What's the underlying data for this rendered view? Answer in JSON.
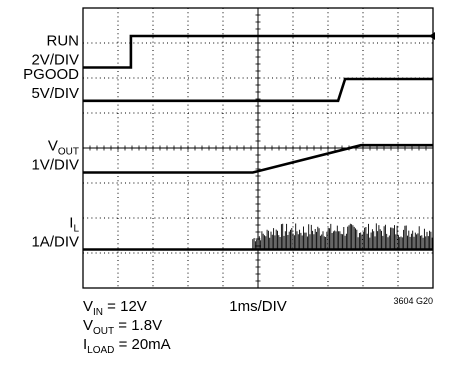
{
  "chart_data": {
    "type": "line",
    "figure_id": "3604 G20",
    "x_axis": {
      "divisions": 10,
      "scale_label": "1ms/DIV",
      "range_ms": [
        0,
        10
      ]
    },
    "y_axis": {
      "divisions": 8,
      "grid": "dotted"
    },
    "channels": [
      {
        "name": "RUN",
        "scale": "2V/DIV",
        "label_parts": [
          {
            "t": "RUN",
            "sub": false
          }
        ],
        "scale_parts": [
          {
            "t": "2V/DIV",
            "sub": false
          }
        ],
        "baseline_div": 1.7,
        "points": [
          [
            0,
            0
          ],
          [
            1.37,
            0
          ],
          [
            1.37,
            0.9
          ],
          [
            10,
            0.9
          ]
        ],
        "trigger_marker": "arrow-left"
      },
      {
        "name": "PGOOD",
        "scale": "5V/DIV",
        "label_parts": [
          {
            "t": "PGOOD",
            "sub": false
          }
        ],
        "scale_parts": [
          {
            "t": "5V/DIV",
            "sub": false
          }
        ],
        "baseline_div": 2.65,
        "points": [
          [
            0,
            0
          ],
          [
            7.29,
            0
          ],
          [
            7.49,
            0.62
          ],
          [
            10,
            0.62
          ]
        ]
      },
      {
        "name": "VOUT",
        "scale": "1V/DIV",
        "label_parts": [
          {
            "t": "V",
            "sub": false
          },
          {
            "t": "OUT",
            "sub": true
          }
        ],
        "scale_parts": [
          {
            "t": "1V/DIV",
            "sub": false
          }
        ],
        "baseline_div": 4.7,
        "points": [
          [
            0,
            0
          ],
          [
            4.85,
            0
          ],
          [
            7.94,
            0.78
          ],
          [
            10,
            0.78
          ]
        ]
      },
      {
        "name": "IL",
        "scale": "1A/DIV",
        "label_parts": [
          {
            "t": "I",
            "sub": false
          },
          {
            "t": "L",
            "sub": true
          }
        ],
        "scale_parts": [
          {
            "t": "1A/DIV",
            "sub": false
          }
        ],
        "baseline_div": 6.9,
        "points": [
          [
            0,
            0
          ],
          [
            4.85,
            0
          ],
          [
            10,
            0
          ]
        ],
        "ripple": {
          "start_ms": 4.85,
          "end_ms": 10,
          "peak_div": 0.75
        }
      }
    ],
    "conditions": [
      [
        {
          "t": "V",
          "sub": false
        },
        {
          "t": "IN",
          "sub": true
        },
        {
          "t": " = 12V",
          "sub": false
        }
      ],
      [
        {
          "t": "V",
          "sub": false
        },
        {
          "t": "OUT",
          "sub": true
        },
        {
          "t": " = 1.8V",
          "sub": false
        }
      ],
      [
        {
          "t": "I",
          "sub": false
        },
        {
          "t": "LOAD",
          "sub": true
        },
        {
          "t": " = 20mA",
          "sub": false
        }
      ]
    ]
  }
}
